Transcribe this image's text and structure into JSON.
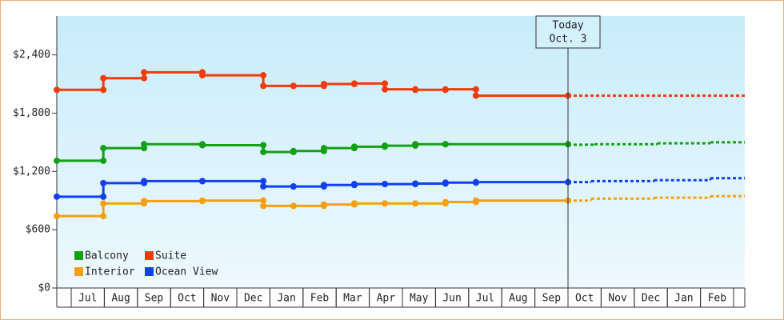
{
  "chart_data": {
    "type": "step-line",
    "xlim": [
      -0.435,
      20.338
    ],
    "categories": [
      "Jul",
      "Aug",
      "Sep",
      "Oct",
      "Nov",
      "Dec",
      "Jan",
      "Feb",
      "Mar",
      "Apr",
      "May",
      "Jun",
      "Jul",
      "Aug",
      "Sep",
      "Oct",
      "Nov",
      "Dec",
      "Jan",
      "Feb"
    ],
    "ylim": [
      0,
      2800
    ],
    "yticks": [
      {
        "value": 0,
        "label": "$0"
      },
      {
        "value": 600,
        "label": "$600"
      },
      {
        "value": 1200,
        "label": "$1,200"
      },
      {
        "value": 1800,
        "label": "$1,800"
      },
      {
        "value": 2400,
        "label": "$2,400"
      }
    ],
    "legend": "bottom-left",
    "annotations": [
      {
        "x": 15.0,
        "lines": [
          "Today",
          "Oct. 3"
        ]
      }
    ],
    "series": [
      {
        "name": "Balcony",
        "color": "#14a014",
        "x": [
          -0.435,
          0.97,
          2.2,
          3.96,
          5.8,
          6.71,
          7.63,
          8.55,
          9.47,
          10.39,
          11.3
        ],
        "values": [
          1310,
          1440,
          1480,
          1470,
          1400,
          1410,
          1440,
          1455,
          1465,
          1480,
          1480
        ],
        "end_x": 15.0,
        "forecast_x": [
          15.0,
          15.8,
          17.7,
          19.3
        ],
        "forecast_values": [
          1475,
          1480,
          1490,
          1500
        ]
      },
      {
        "name": "Suite",
        "color": "#f03c0c",
        "x": [
          -0.435,
          0.97,
          2.2,
          3.96,
          5.8,
          6.71,
          7.63,
          8.55,
          9.47,
          10.39,
          11.3,
          12.22
        ],
        "values": [
          2040,
          2160,
          2220,
          2190,
          2080,
          2080,
          2100,
          2105,
          2045,
          2040,
          2045,
          1980
        ],
        "end_x": 15.0,
        "forecast_x": [
          15.0
        ],
        "forecast_values": [
          1980
        ]
      },
      {
        "name": "Interior",
        "color": "#f5a010",
        "x": [
          -0.435,
          0.97,
          2.2,
          3.96,
          5.8,
          6.71,
          7.63,
          8.55,
          9.47,
          10.39,
          11.3,
          12.22
        ],
        "values": [
          740,
          870,
          895,
          900,
          845,
          845,
          860,
          870,
          870,
          870,
          885,
          900
        ],
        "end_x": 15.0,
        "forecast_x": [
          15.0,
          15.7,
          17.6,
          19.3
        ],
        "forecast_values": [
          900,
          920,
          930,
          945
        ]
      },
      {
        "name": "Ocean View",
        "color": "#1040f0",
        "x": [
          -0.435,
          0.97,
          2.2,
          3.96,
          5.8,
          6.71,
          7.63,
          8.55,
          9.47,
          10.39,
          11.3,
          12.22
        ],
        "values": [
          940,
          1080,
          1100,
          1100,
          1045,
          1045,
          1060,
          1070,
          1070,
          1075,
          1085,
          1090
        ],
        "end_x": 15.0,
        "forecast_x": [
          15.0,
          15.7,
          17.6,
          19.3
        ],
        "forecast_values": [
          1090,
          1100,
          1110,
          1130
        ]
      }
    ]
  }
}
